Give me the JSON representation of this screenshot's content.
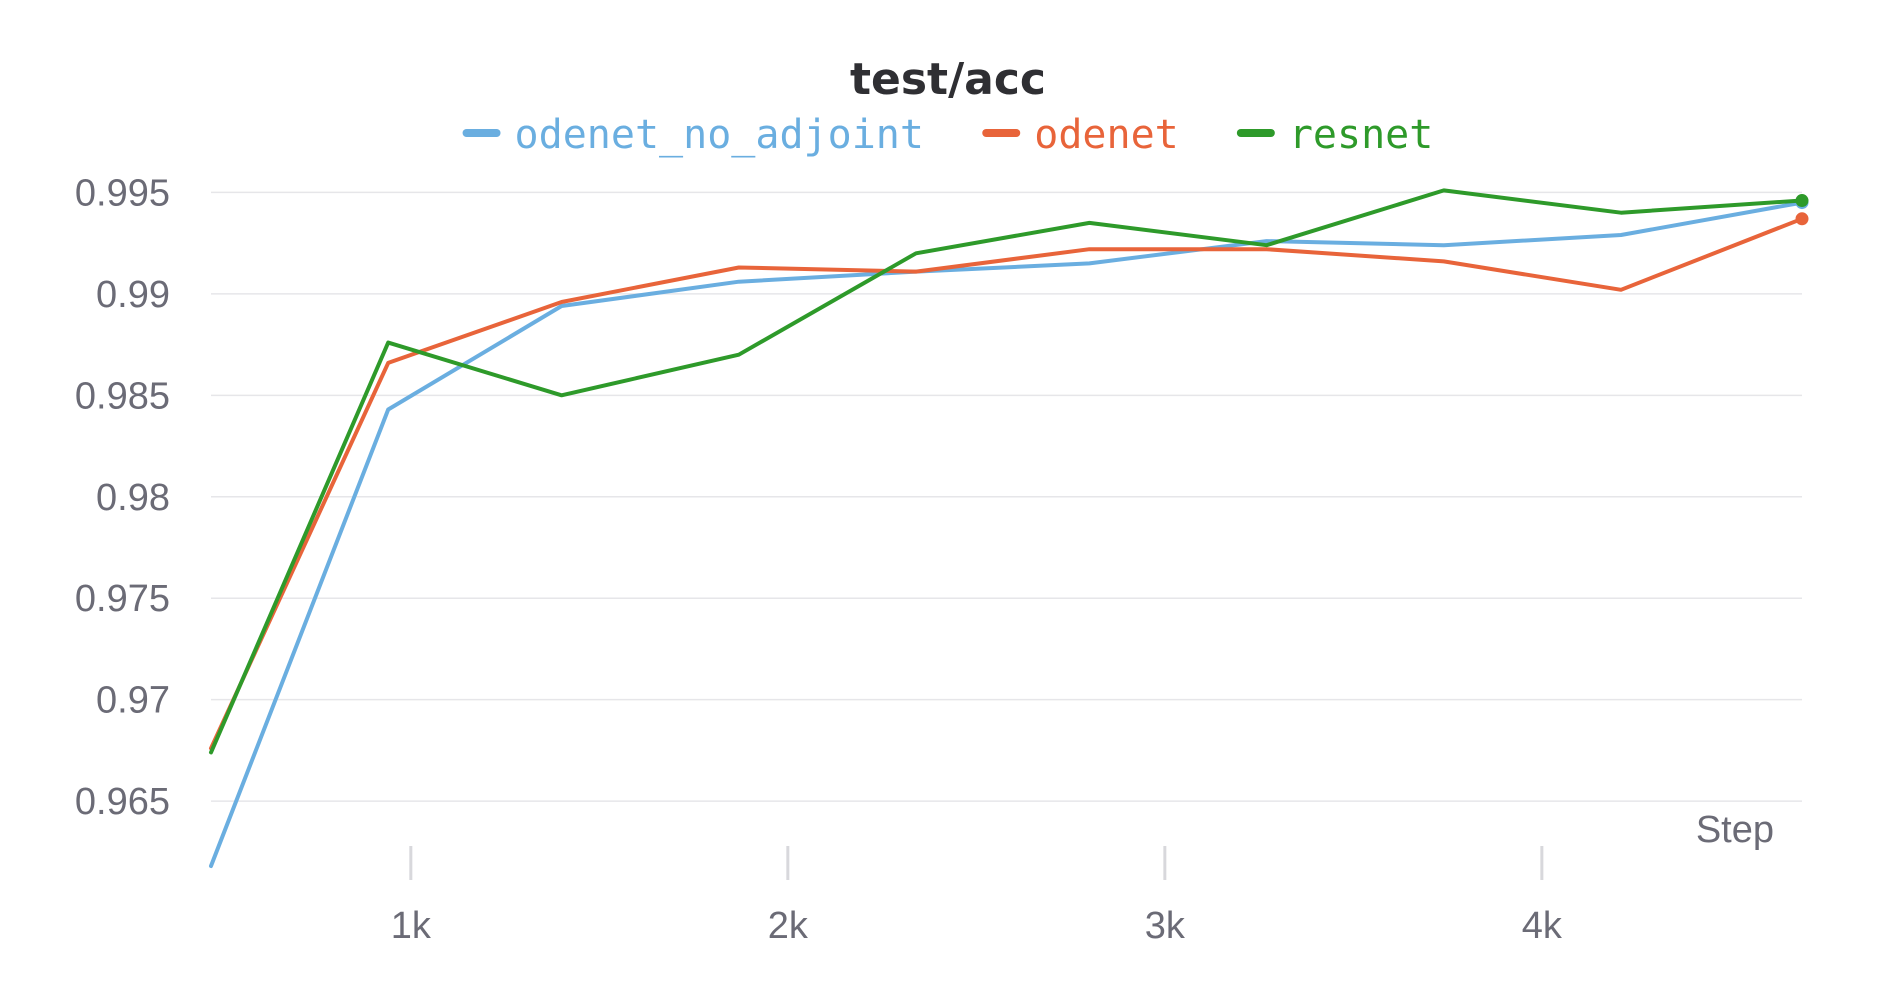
{
  "chart_data": {
    "type": "line",
    "title": "test/acc",
    "xlabel": "Step",
    "ylabel": "",
    "xlim": [
      470,
      4690
    ],
    "ylim": [
      0.9618,
      0.9965
    ],
    "x_ticks": [
      1000,
      2000,
      3000,
      4000
    ],
    "x_tick_labels": [
      "1k",
      "2k",
      "3k",
      "4k"
    ],
    "y_ticks": [
      0.965,
      0.97,
      0.975,
      0.98,
      0.985,
      0.99,
      0.995
    ],
    "y_tick_labels": [
      "0.965",
      "0.97",
      "0.975",
      "0.98",
      "0.985",
      "0.99",
      "0.995"
    ],
    "grid": true,
    "legend_position": "top-center",
    "series": [
      {
        "name": "odenet_no_adjoint",
        "color": "#6aaee0",
        "x": [
          470,
          940,
          1400,
          1870,
          2340,
          2800,
          3270,
          3740,
          4210,
          4690
        ],
        "y": [
          0.9618,
          0.9843,
          0.9894,
          0.9906,
          0.9911,
          0.9915,
          0.9926,
          0.9924,
          0.9929,
          0.9945
        ]
      },
      {
        "name": "odenet",
        "color": "#e8643a",
        "x": [
          470,
          940,
          1400,
          1870,
          2340,
          2800,
          3270,
          3740,
          4210,
          4690
        ],
        "y": [
          0.9676,
          0.9866,
          0.9896,
          0.9913,
          0.9911,
          0.9922,
          0.9922,
          0.9916,
          0.9902,
          0.9937
        ]
      },
      {
        "name": "resnet",
        "color": "#2e9a2a",
        "x": [
          470,
          940,
          1400,
          1870,
          2340,
          2800,
          3270,
          3740,
          4210,
          4690
        ],
        "y": [
          0.9674,
          0.9876,
          0.985,
          0.987,
          0.992,
          0.9935,
          0.9924,
          0.9951,
          0.994,
          0.9946
        ]
      }
    ]
  }
}
